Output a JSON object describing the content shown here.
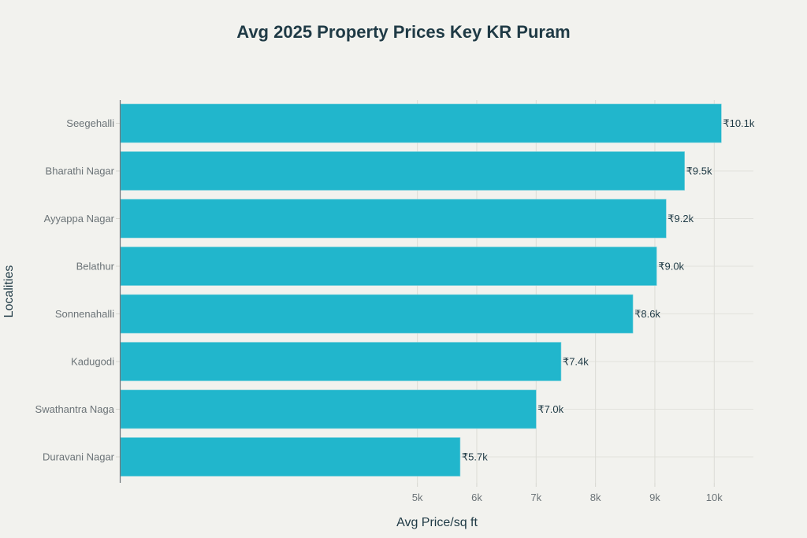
{
  "chart_data": {
    "type": "bar",
    "orientation": "horizontal",
    "title": "Avg 2025 Property Prices Key KR Puram",
    "xlabel": "Avg Price/sq ft",
    "ylabel": "Localities",
    "categories": [
      "Seegehalli",
      "Bharathi Nagar",
      "Ayyappa Nagar",
      "Belathur",
      "Sonnenahalli",
      "Kadugodi",
      "Swathantra Naga",
      "Duravani Nagar"
    ],
    "values": [
      10120,
      9500,
      9190,
      9030,
      8630,
      7420,
      7000,
      5720
    ],
    "data_labels": [
      "₹10.1k",
      "₹9.5k",
      "₹9.2k",
      "₹9.0k",
      "₹8.6k",
      "₹7.4k",
      "₹7.0k",
      "₹5.7k"
    ],
    "xticks": [
      5000,
      6000,
      7000,
      8000,
      9000,
      10000
    ],
    "xtick_labels": [
      "5k",
      "6k",
      "7k",
      "8k",
      "9k",
      "10k"
    ],
    "xlim": [
      0,
      10660
    ],
    "grid": true,
    "bar_color": "#21b6cc",
    "legend": "none"
  }
}
